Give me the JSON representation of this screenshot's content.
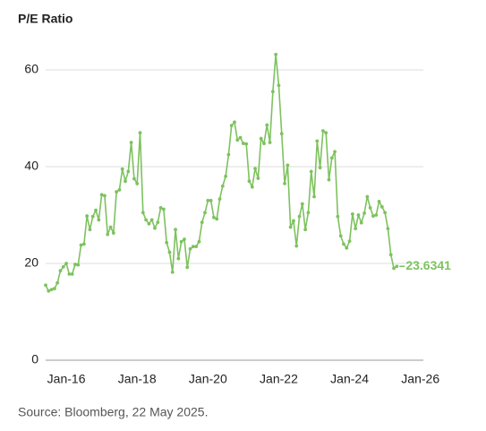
{
  "chart_data": {
    "type": "line",
    "title": "P/E Ratio",
    "source": "Source: Bloomberg, 22 May 2025.",
    "annotation": "23.6341",
    "color": "#7dc25e",
    "grid": true,
    "x": [
      "Jun-15",
      "Jul-15",
      "Aug-15",
      "Sep-15",
      "Oct-15",
      "Nov-15",
      "Dec-15",
      "Jan-16",
      "Feb-16",
      "Mar-16",
      "Apr-16",
      "May-16",
      "Jun-16",
      "Jul-16",
      "Aug-16",
      "Sep-16",
      "Oct-16",
      "Nov-16",
      "Dec-16",
      "Jan-17",
      "Feb-17",
      "Mar-17",
      "Apr-17",
      "May-17",
      "Jun-17",
      "Jul-17",
      "Aug-17",
      "Sep-17",
      "Oct-17",
      "Nov-17",
      "Dec-17",
      "Jan-18",
      "Feb-18",
      "Mar-18",
      "Apr-18",
      "May-18",
      "Jun-18",
      "Jul-18",
      "Aug-18",
      "Sep-18",
      "Oct-18",
      "Nov-18",
      "Dec-18",
      "Jan-19",
      "Feb-19",
      "Mar-19",
      "Apr-19",
      "May-19",
      "Jun-19",
      "Jul-19",
      "Aug-19",
      "Sep-19",
      "Oct-19",
      "Nov-19",
      "Dec-19",
      "Jan-20",
      "Feb-20",
      "Mar-20",
      "Apr-20",
      "May-20",
      "Jun-20",
      "Jul-20",
      "Aug-20",
      "Sep-20",
      "Oct-20",
      "Nov-20",
      "Dec-20",
      "Jan-21",
      "Feb-21",
      "Mar-21",
      "Apr-21",
      "May-21",
      "Jun-21",
      "Jul-21",
      "Aug-21",
      "Sep-21",
      "Oct-21",
      "Nov-21",
      "Dec-21",
      "Jan-22",
      "Feb-22",
      "Mar-22",
      "Apr-22",
      "May-22",
      "Jun-22",
      "Jul-22",
      "Aug-22",
      "Sep-22",
      "Oct-22",
      "Nov-22",
      "Dec-22",
      "Jan-23",
      "Feb-23",
      "Mar-23",
      "Apr-23",
      "May-23",
      "Jun-23",
      "Jul-23",
      "Aug-23",
      "Sep-23",
      "Oct-23",
      "Nov-23",
      "Dec-23",
      "Jan-24",
      "Feb-24",
      "Mar-24",
      "Apr-24",
      "May-24",
      "Jun-24",
      "Jul-24",
      "Aug-24",
      "Sep-24",
      "Oct-24",
      "Nov-24",
      "Dec-24",
      "Jan-25",
      "Feb-25",
      "Mar-25",
      "Apr-25",
      "May-25"
    ],
    "values": [
      15.5,
      14.3,
      14.6,
      14.8,
      16,
      18.5,
      19.3,
      20,
      17.8,
      17.8,
      19.8,
      19.7,
      23.8,
      24,
      29.8,
      27,
      29.7,
      31,
      29,
      34.2,
      34,
      26,
      27.5,
      26.3,
      34.8,
      35.2,
      39.5,
      37,
      39,
      45,
      37.5,
      36.5,
      47,
      30.5,
      29,
      28.2,
      29,
      27.3,
      28.5,
      31.5,
      31.2,
      24.3,
      22.3,
      18.2,
      27,
      21,
      24.5,
      25,
      19.2,
      23,
      23.5,
      23.5,
      24.5,
      28.5,
      30.5,
      33,
      33,
      29.5,
      29.2,
      33.3,
      36,
      38,
      42.5,
      48.5,
      49.2,
      45.5,
      46,
      44.8,
      44.7,
      37,
      35.8,
      39.6,
      37.6,
      45.8,
      44.8,
      48.6,
      45,
      55.5,
      63.2,
      56.8,
      46.8,
      36.5,
      40.3,
      27.5,
      28.8,
      23.6,
      29.7,
      32.3,
      27,
      30.5,
      39,
      33.8,
      45.3,
      39.8,
      47.4,
      47,
      37.3,
      41.8,
      43.1,
      29.7,
      25.7,
      24,
      23.2,
      24.6,
      30.2,
      27.2,
      30,
      28.4,
      30.4,
      33.8,
      31.5,
      29.8,
      30,
      32.8,
      31.7,
      30.5,
      27.2,
      21.8,
      19,
      19.4
    ],
    "xlim": [
      "Jun-15",
      "Feb-26"
    ],
    "xticks": [
      "Jan-16",
      "Jan-18",
      "Jan-20",
      "Jan-22",
      "Jan-24",
      "Jan-26"
    ],
    "ylim": [
      0,
      64
    ],
    "yticks": [
      0,
      20,
      40,
      60
    ]
  }
}
